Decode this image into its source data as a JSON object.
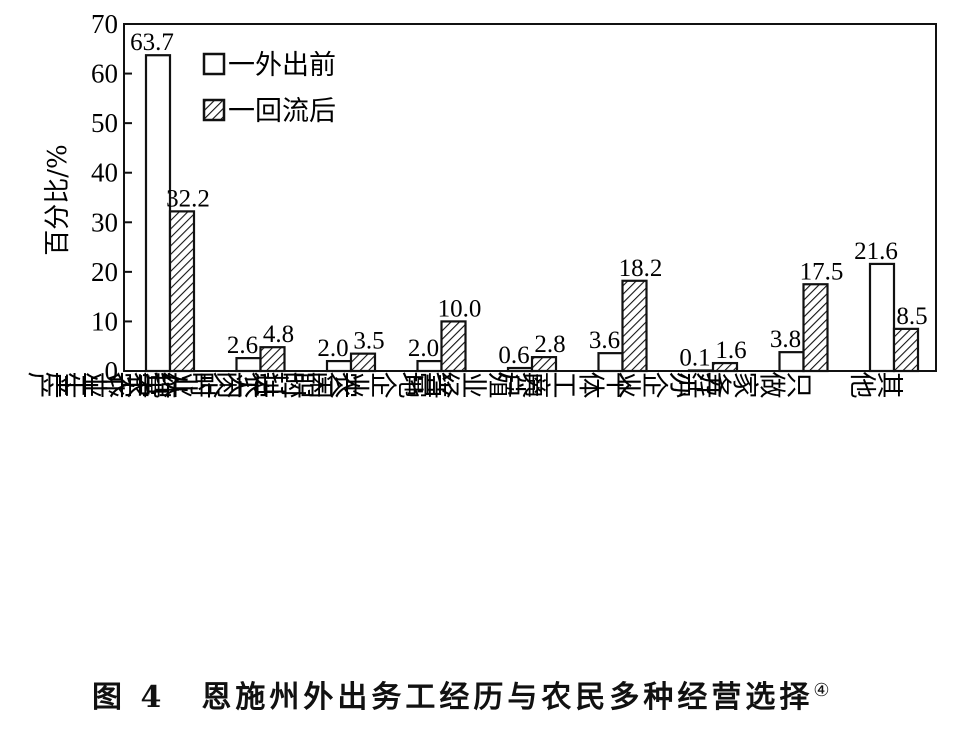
{
  "chart_data": {
    "type": "bar",
    "title": "",
    "xlabel": "",
    "ylabel": "百分比/%",
    "ylim": [
      0,
      70
    ],
    "yticks": [
      0,
      10,
      20,
      30,
      40,
      50,
      60,
      70
    ],
    "grid": false,
    "legend_position": "upper-left-inside",
    "categories": [
      "纯农业生产",
      "农闲时从事农业生产",
      "农闲时进人企业打工",
      "当地企业全职打工",
      "养殖业经营",
      "个体工商户",
      "开办企业",
      "只做家务活",
      "其他"
    ],
    "series": [
      {
        "name": "一外出前",
        "pattern": "hollow",
        "values": [
          63.7,
          2.6,
          2.0,
          2.0,
          0.6,
          3.6,
          0.1,
          3.8,
          21.6
        ]
      },
      {
        "name": "一回流后",
        "pattern": "hatched",
        "values": [
          32.2,
          4.8,
          3.5,
          10.0,
          2.8,
          18.2,
          1.6,
          17.5,
          8.5
        ]
      }
    ],
    "labels": {
      "series0": [
        "63.7",
        "2.6",
        "2.0",
        "2.0",
        "0.6",
        "3.6",
        "0.1",
        "3.8",
        "21.6"
      ],
      "series1": [
        "32.2",
        "4.8",
        "3.5",
        "10.0",
        "2.8",
        "18.2",
        "1.6",
        "17.5",
        "8.5"
      ]
    }
  },
  "caption": {
    "figure_no": "图 4",
    "text": "恩施州外出务工经历与农民多种经营选择",
    "note": "④"
  }
}
